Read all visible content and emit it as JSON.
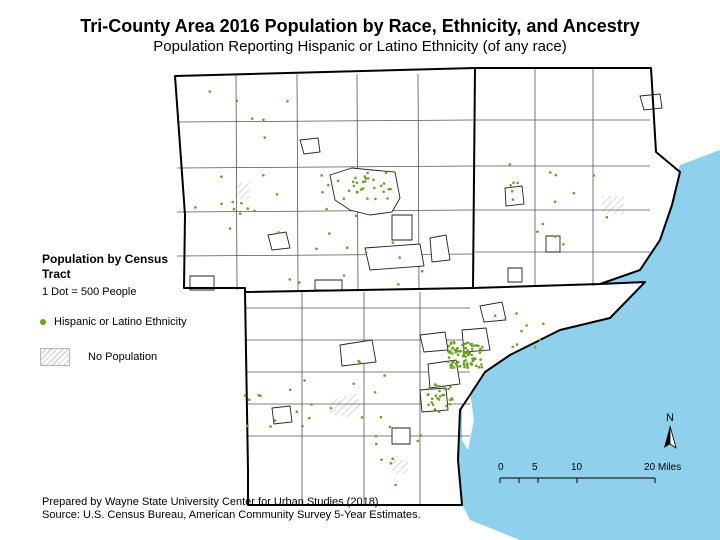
{
  "title": "Tri-County Area 2016 Population by Race, Ethnicity, and Ancestry",
  "subtitle": "Population Reporting Hispanic or Latino Ethnicity (of any race)",
  "legend": {
    "heading": "Population by Census Tract",
    "dot_value_note": "1 Dot = 500 People",
    "dot_label": "Hispanic or Latino Ethnicity",
    "dot_color": "#6aa121",
    "no_population_label": "No Population"
  },
  "north_arrow": "N",
  "scale_bar": {
    "ticks": [
      "0",
      "5",
      "10",
      "20 Miles"
    ]
  },
  "credits": {
    "prepared_by": "Prepared by Wayne State University Center for Urban Studies (2018)",
    "source": "Source: U.S. Census Bureau, American Community Survey 5-Year Estimates."
  },
  "colors": {
    "water": "#8fd0ec",
    "boundary": "#000000",
    "township_line": "#555555",
    "dot": "#6aa121"
  }
}
